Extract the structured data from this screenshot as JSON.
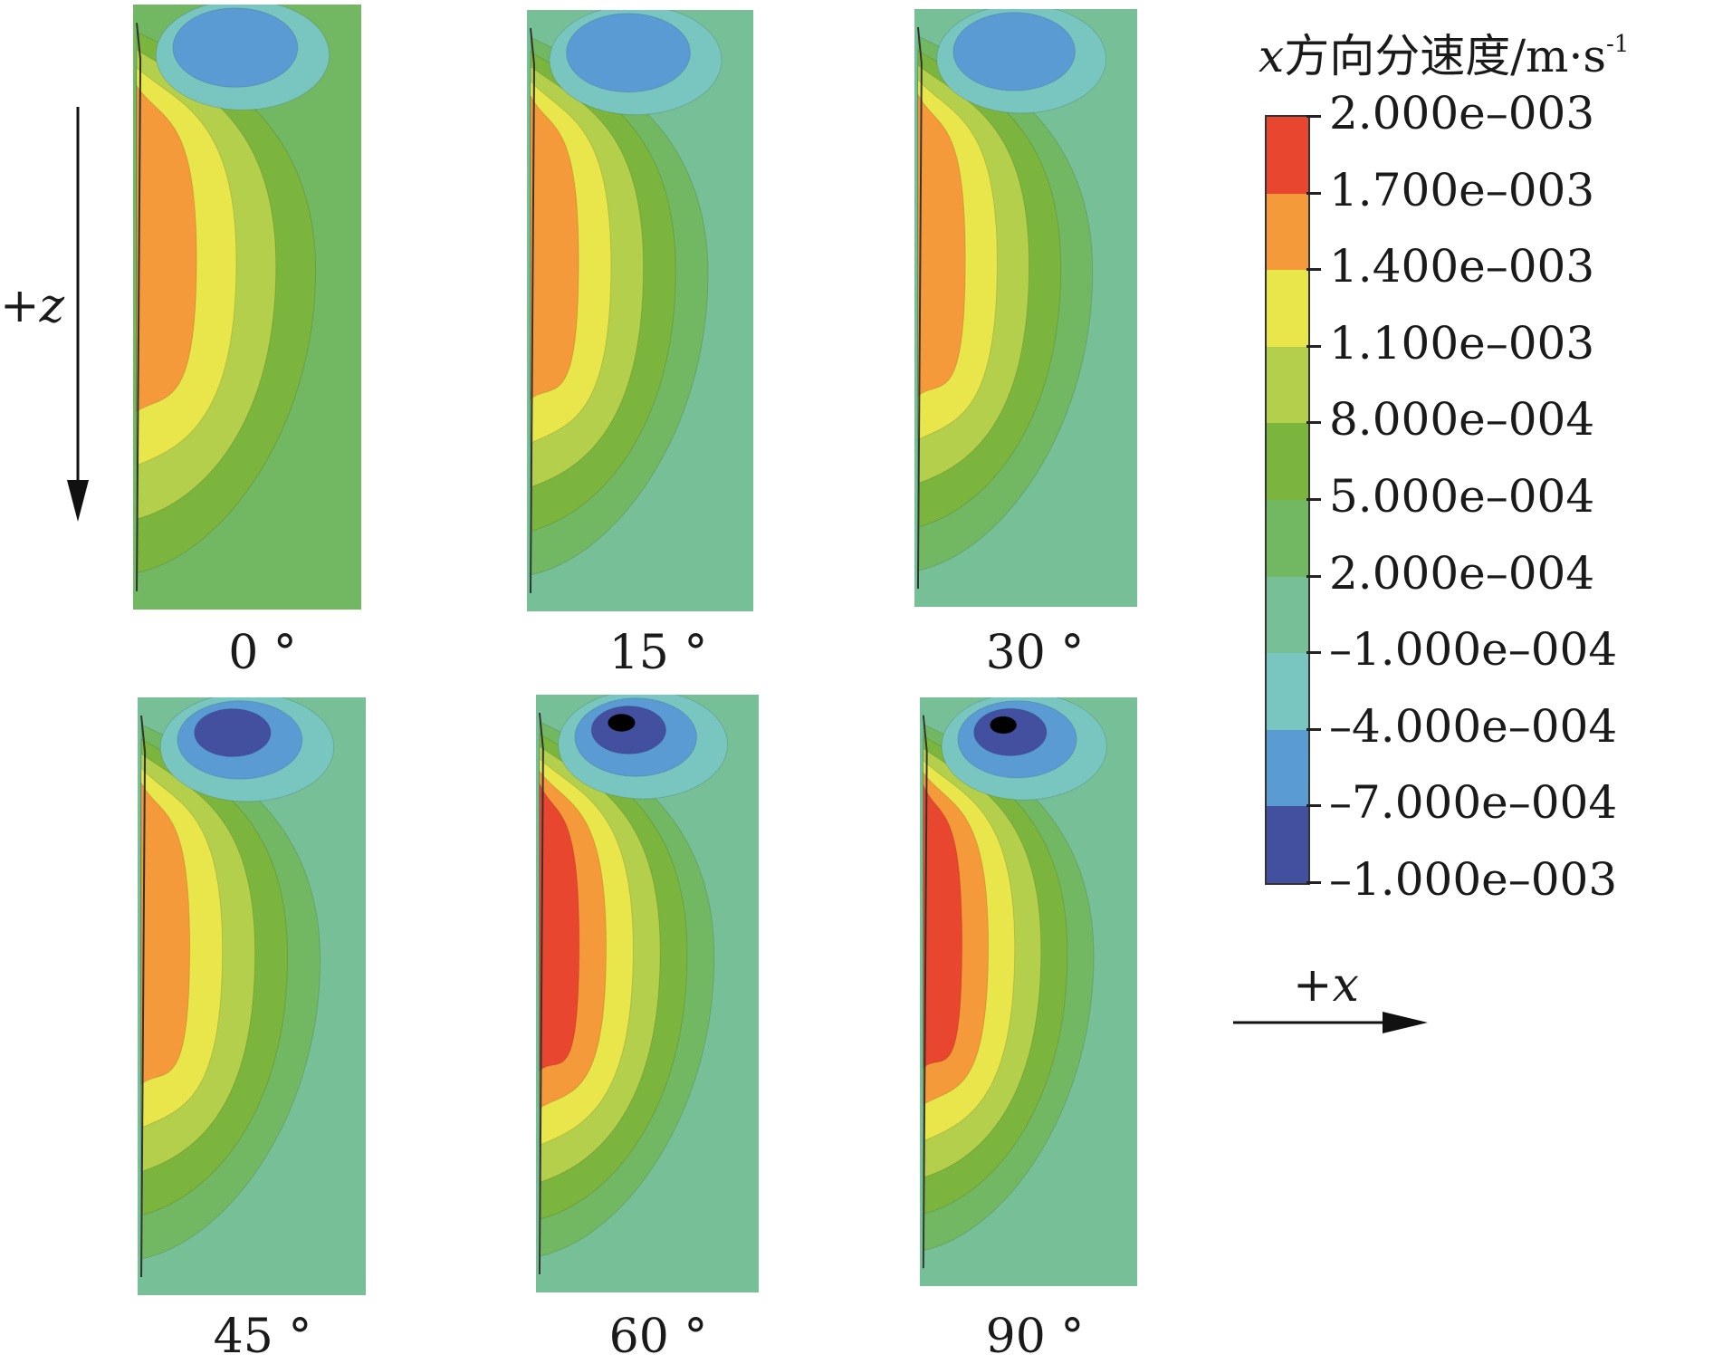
{
  "panels": [
    {
      "label": "0 °"
    },
    {
      "label": "15 °"
    },
    {
      "label": "30 °"
    },
    {
      "label": "45 °"
    },
    {
      "label": "60 °"
    },
    {
      "label": "90 °"
    }
  ],
  "legend": {
    "title_var": "x",
    "title_text": "方向分速度/m·s",
    "title_sup": "-1",
    "levels": [
      "2.000e-003",
      "1.700e-003",
      "1.400e-003",
      "1.100e-003",
      "8.000e-004",
      "5.000e-004",
      "2.000e-004",
      "-1.000e-004",
      "-4.000e-004",
      "-7.000e-004",
      "-1.000e-003"
    ],
    "colors": [
      "#e8462e",
      "#f49a3a",
      "#e9e64b",
      "#b4cf4c",
      "#7cb53d",
      "#72b862",
      "#77bf96",
      "#79c6c1",
      "#5b9bd4",
      "#43509f"
    ]
  },
  "axes": {
    "z_label_sign": "+",
    "z_label_var": "z",
    "x_label_sign": "+",
    "x_label_var": "x"
  }
}
